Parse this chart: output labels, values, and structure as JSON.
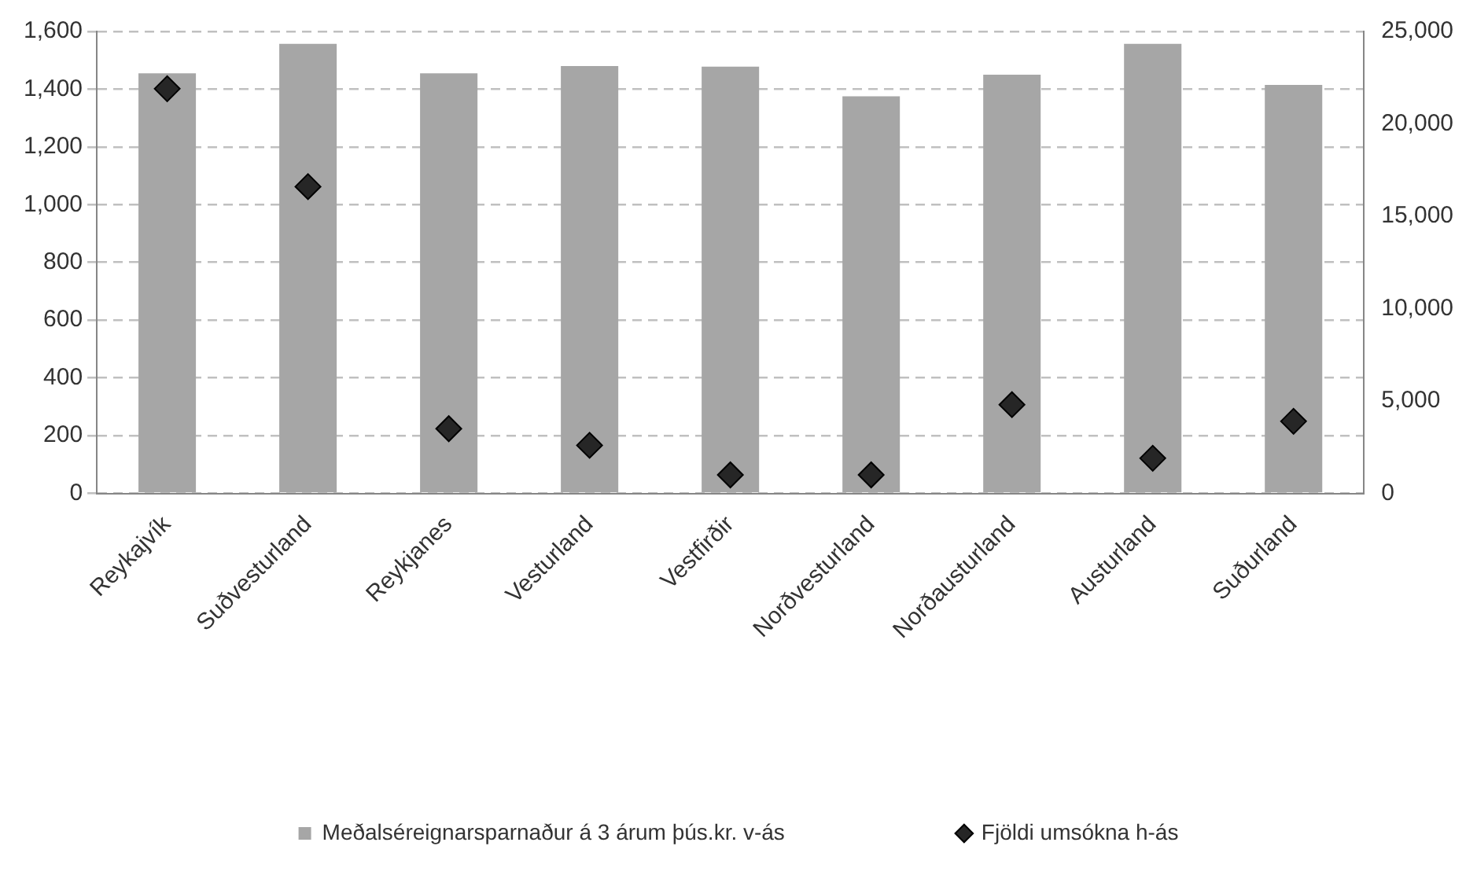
{
  "chart_data": {
    "type": "bar",
    "categories": [
      "Reykajvík",
      "Suðvesturland",
      "Reykjanes",
      "Vesturland",
      "Vestfirðir",
      "Norðvesturland",
      "Norðausturland",
      "Austurland",
      "Suðurland"
    ],
    "series": [
      {
        "name": "Meðalséreignarsparnaður á 3 árum þús.kr. v-ás",
        "color": "#a6a6a6",
        "values": [
          1455,
          1557,
          1455,
          1480,
          1478,
          1375,
          1450,
          1557,
          1415
        ]
      },
      {
        "name": "Fjöldi umsókna h-ás",
        "type": "scatter",
        "axis": "y2",
        "color": "#262626",
        "marker": "diamond",
        "values": [
          21900,
          16600,
          3500,
          2600,
          1000,
          1000,
          4800,
          1900,
          3900
        ]
      }
    ],
    "ylim": [
      0,
      1600
    ],
    "yticks": [
      {
        "value": 0,
        "label": "0"
      },
      {
        "value": 200,
        "label": "200"
      },
      {
        "value": 400,
        "label": "400"
      },
      {
        "value": 600,
        "label": "600"
      },
      {
        "value": 800,
        "label": "800"
      },
      {
        "value": 1000,
        "label": "1,000"
      },
      {
        "value": 1200,
        "label": "1,200"
      },
      {
        "value": 1400,
        "label": "1,400"
      },
      {
        "value": 1600,
        "label": "1,600"
      }
    ],
    "y2lim": [
      0,
      25000
    ],
    "y2ticks": [
      {
        "value": 0,
        "label": "0"
      },
      {
        "value": 5000,
        "label": "5,000"
      },
      {
        "value": 10000,
        "label": "10,000"
      },
      {
        "value": 15000,
        "label": "15,000"
      },
      {
        "value": 20000,
        "label": "20,000"
      },
      {
        "value": 25000,
        "label": "25,000"
      }
    ],
    "grid": "y",
    "legend": "bottom"
  }
}
